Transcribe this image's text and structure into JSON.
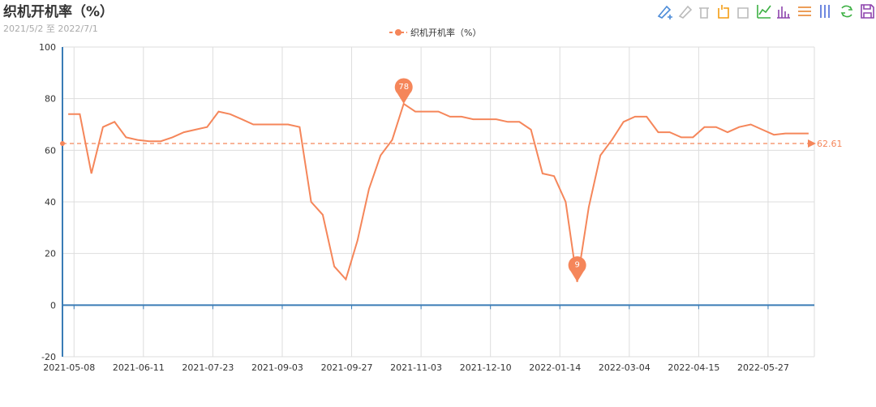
{
  "chart_data": {
    "type": "line",
    "title": "织机开机率（%）",
    "subtitle": "2021/5/2 至 2022/7/1",
    "categories": [
      "2021-05-08",
      null,
      null,
      null,
      null,
      null,
      "2021-06-11",
      null,
      null,
      null,
      null,
      null,
      "2021-07-23",
      null,
      null,
      null,
      null,
      null,
      "2021-09-03",
      null,
      null,
      null,
      null,
      null,
      "2021-09-27",
      null,
      null,
      null,
      null,
      null,
      "2021-11-03",
      null,
      null,
      null,
      null,
      null,
      "2021-12-10",
      null,
      null,
      null,
      null,
      null,
      "2022-01-14",
      null,
      null,
      null,
      null,
      null,
      "2022-03-04",
      null,
      null,
      null,
      null,
      null,
      "2022-04-15",
      null,
      null,
      null,
      null,
      null,
      "2022-05-27",
      null,
      null,
      null,
      null
    ],
    "series": [
      {
        "name": "织机开机率（%）",
        "color": "#f5865a",
        "values": [
          74,
          74,
          51,
          69,
          71,
          65,
          64,
          63.5,
          63.5,
          65,
          67,
          68,
          69,
          75,
          74,
          72,
          70,
          70,
          70,
          70,
          69,
          40,
          35,
          15,
          10,
          25,
          45,
          58,
          64,
          78,
          75,
          75,
          75,
          73,
          73,
          72,
          72,
          72,
          71,
          71,
          68,
          51,
          50,
          40,
          9,
          38,
          58,
          64,
          71,
          73,
          73,
          67,
          67,
          65,
          65,
          69,
          69,
          67,
          69,
          70,
          68,
          66,
          66.5,
          66.5,
          66.5
        ]
      }
    ],
    "max_point": {
      "index": 29
    },
    "min_point": {
      "index": 44
    },
    "average_line": 62.61,
    "ylim": [
      -20,
      100
    ],
    "yticks": [
      -20,
      0,
      20,
      40,
      60,
      80,
      100
    ],
    "grid": true
  }
}
